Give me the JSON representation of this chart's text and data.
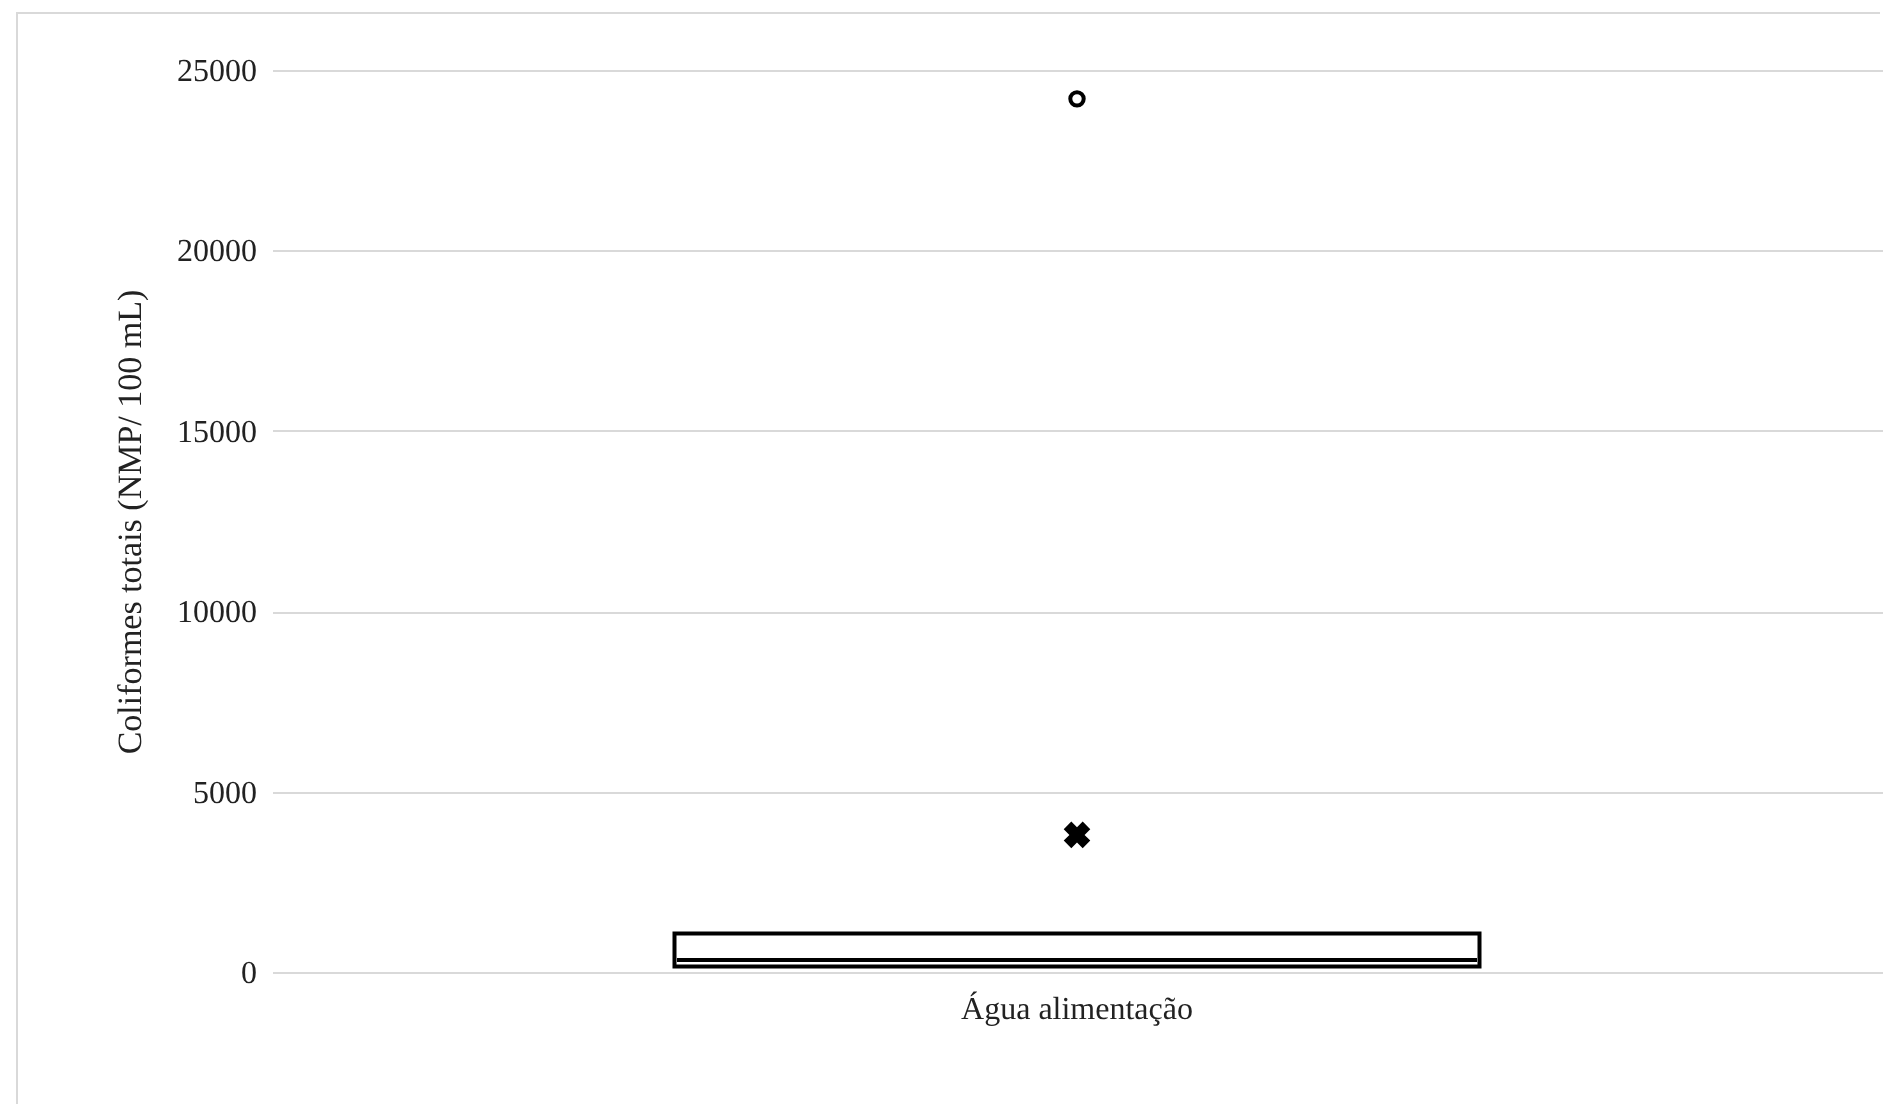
{
  "chart_data": {
    "type": "box",
    "ylabel": "Coliformes totais (NMP/ 100 mL)",
    "categories": [
      "Água alimentação"
    ],
    "boxes": [
      {
        "low": 150,
        "q1": 150,
        "median": 330,
        "q3": 1070,
        "high": 1070,
        "mean": 3800,
        "outliers": [
          24200
        ]
      }
    ],
    "ylim": [
      0,
      25000
    ],
    "yticks": [
      0,
      5000,
      10000,
      15000,
      20000,
      25000
    ],
    "grid": "y"
  }
}
